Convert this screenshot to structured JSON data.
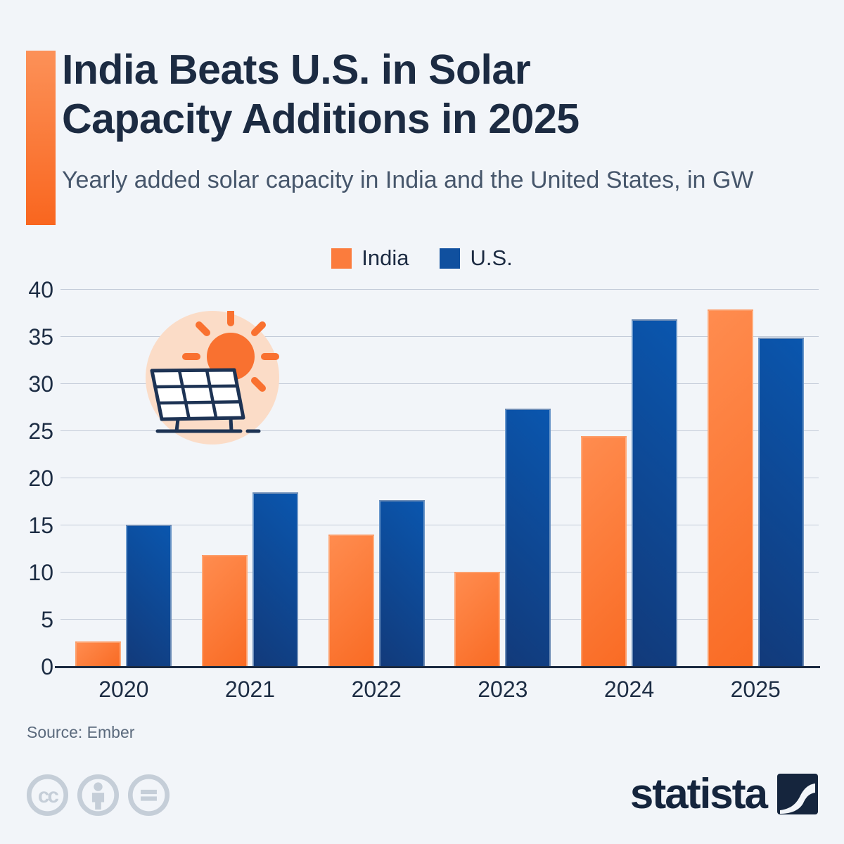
{
  "header": {
    "title": "India Beats U.S. in Solar Capacity Additions in 2025",
    "subtitle": "Yearly added solar capacity in India and the United States, in GW"
  },
  "legend": [
    {
      "label": "India",
      "color": "#fb7c3d"
    },
    {
      "label": "U.S.",
      "color": "#10509f"
    }
  ],
  "chart_data": {
    "type": "bar",
    "title": "India Beats U.S. in Solar Capacity Additions in 2025",
    "subtitle": "Yearly added solar capacity in India and the United States, in GW",
    "categories": [
      "2020",
      "2021",
      "2022",
      "2023",
      "2024",
      "2025"
    ],
    "series": [
      {
        "name": "India",
        "color": "#fb7c3d",
        "values": [
          2.7,
          11.9,
          14.0,
          10.1,
          24.5,
          37.9
        ]
      },
      {
        "name": "U.S.",
        "color": "#10509f",
        "values": [
          15.1,
          18.5,
          17.7,
          27.4,
          36.9,
          34.9
        ]
      }
    ],
    "ylim": [
      0,
      40
    ],
    "yticks": [
      0,
      5,
      10,
      15,
      20,
      25,
      30,
      35,
      40
    ],
    "xlabel": "",
    "ylabel": "",
    "grid": true,
    "legend_position": "top"
  },
  "illustration": {
    "name": "solar-panel-and-sun",
    "circle_color": "#fbdcc7",
    "sun_color": "#f97130",
    "panel_stroke_color": "#1d3354"
  },
  "footer": {
    "source": "Source: Ember",
    "license_icon_names": [
      "cc-icon",
      "cc-attribution-icon",
      "cc-equal-sign-icon"
    ],
    "license_icon_color": "#c5ced8",
    "brand": "statista",
    "brand_color": "#15253d"
  }
}
